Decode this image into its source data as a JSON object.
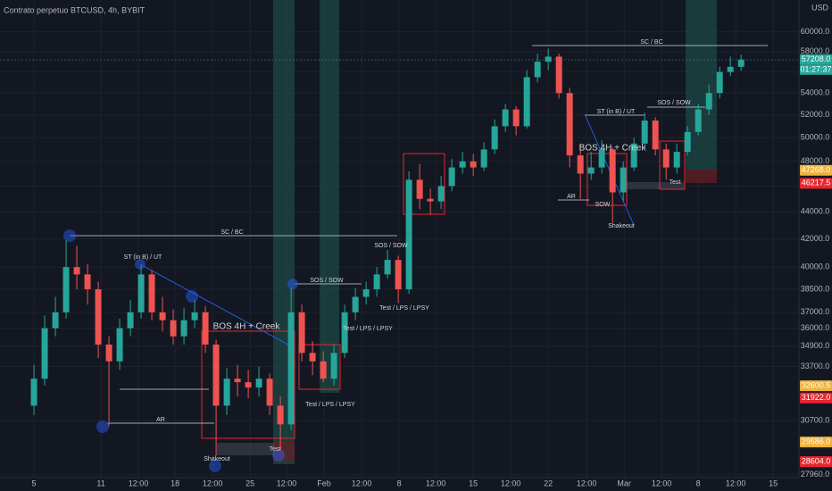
{
  "chart_data": {
    "type": "candlestick",
    "title": "Contrato perpetuo BTCUSD, 4h, BYBIT",
    "currency": "USD",
    "log_scale": true,
    "up_color": "#26a69a",
    "down_color": "#ef5350",
    "xlim": [
      -3.17,
      71.4
    ],
    "ylim": [
      27400,
      63400
    ],
    "xticks": [
      {
        "value": 0,
        "label": "5"
      },
      {
        "value": 6.25,
        "label": "11"
      },
      {
        "value": 9.75,
        "label": "12:00"
      },
      {
        "value": 13.17,
        "label": "18"
      },
      {
        "value": 16.67,
        "label": "12:00"
      },
      {
        "value": 20.17,
        "label": "25"
      },
      {
        "value": 23.58,
        "label": "12:00"
      },
      {
        "value": 27.08,
        "label": "Feb"
      },
      {
        "value": 30.58,
        "label": "12:00"
      },
      {
        "value": 34.08,
        "label": "8"
      },
      {
        "value": 37.5,
        "label": "12:00"
      },
      {
        "value": 41,
        "label": "15"
      },
      {
        "value": 44.5,
        "label": "12:00"
      },
      {
        "value": 48,
        "label": "22"
      },
      {
        "value": 51.58,
        "label": "12:00"
      },
      {
        "value": 55.08,
        "label": "Mar"
      },
      {
        "value": 58.58,
        "label": "12:00"
      },
      {
        "value": 62,
        "label": "8"
      },
      {
        "value": 65.5,
        "label": "12:00"
      },
      {
        "value": 69,
        "label": "15"
      }
    ],
    "yticks": [
      {
        "value": 60000,
        "label": "60000.0"
      },
      {
        "value": 58000,
        "label": "58000.0"
      },
      {
        "value": 56000,
        "label": "56000.0"
      },
      {
        "value": 54000,
        "label": "54000.0"
      },
      {
        "value": 52000,
        "label": "52000.0"
      },
      {
        "value": 50000,
        "label": "50000.0"
      },
      {
        "value": 48000,
        "label": "48000.0"
      },
      {
        "value": 46000,
        "label": "46000.0"
      },
      {
        "value": 44000,
        "label": "44000.0"
      },
      {
        "value": 42000,
        "label": "42000.0"
      },
      {
        "value": 40000,
        "label": "40000.0"
      },
      {
        "value": 38500,
        "label": "38500.0"
      },
      {
        "value": 37000,
        "label": "37000.0"
      },
      {
        "value": 36000,
        "label": "36000.0"
      },
      {
        "value": 34900,
        "label": "34900.0"
      },
      {
        "value": 33700,
        "label": "33700.0"
      },
      {
        "value": 30700,
        "label": "30700.0"
      },
      {
        "value": 27960,
        "label": "27960.0"
      }
    ],
    "x": [
      0,
      1,
      2,
      3,
      4,
      5,
      6,
      7,
      8,
      9,
      10,
      11,
      12,
      13,
      14,
      15,
      16,
      17,
      18,
      19,
      20,
      21,
      22,
      23,
      24,
      25,
      26,
      27,
      28,
      29,
      30,
      31,
      32,
      33,
      34,
      35,
      36,
      37,
      38,
      39,
      40,
      41,
      42,
      43,
      44,
      45,
      46,
      47,
      48,
      49,
      50,
      51,
      52,
      53,
      54,
      55,
      56,
      57,
      58,
      59,
      60,
      61,
      62,
      63,
      64,
      65,
      66
    ],
    "open": [
      31500,
      33000,
      36000,
      37000,
      40000,
      39500,
      38500,
      35000,
      34000,
      36000,
      37000,
      39500,
      37000,
      36500,
      35500,
      36500,
      37000,
      35000,
      31500,
      33000,
      32800,
      32500,
      33000,
      31500,
      30500,
      37000,
      34500,
      34000,
      33000,
      34500,
      37000,
      38000,
      38500,
      39500,
      40500,
      38500,
      46500,
      45000,
      44800,
      46000,
      47500,
      48000,
      47500,
      49000,
      51000,
      52500,
      51000,
      55500,
      57000,
      57500,
      54000,
      48500,
      47000,
      47500,
      49000,
      45500,
      47500,
      49500,
      51500,
      49000,
      47500,
      48800,
      50500,
      52500,
      54000,
      56000,
      56500
    ],
    "high": [
      33800,
      36800,
      38000,
      41900,
      41500,
      40200,
      39000,
      35500,
      36600,
      37800,
      40100,
      39800,
      38000,
      37200,
      37300,
      37800,
      37400,
      35300,
      33600,
      33800,
      33500,
      33700,
      33300,
      32000,
      38600,
      37500,
      35200,
      34600,
      35000,
      37500,
      38600,
      39000,
      40000,
      41200,
      40800,
      47200,
      47800,
      45800,
      46800,
      48200,
      48800,
      48600,
      49600,
      51600,
      53000,
      52800,
      56200,
      57800,
      58300,
      57800,
      54500,
      49500,
      48800,
      49800,
      49200,
      48000,
      50000,
      52200,
      51800,
      49500,
      49500,
      51000,
      53000,
      54800,
      56500,
      57500,
      57700
    ],
    "low": [
      31000,
      32600,
      35500,
      36600,
      38500,
      37500,
      34200,
      30400,
      33500,
      35500,
      36600,
      36500,
      35800,
      35000,
      35000,
      36000,
      34500,
      28900,
      31000,
      32000,
      31900,
      32000,
      31000,
      29200,
      30200,
      34000,
      33200,
      32800,
      32600,
      34200,
      36500,
      37500,
      38000,
      39200,
      37600,
      38200,
      44200,
      43800,
      44200,
      45600,
      47000,
      46800,
      47200,
      48600,
      50500,
      50200,
      50800,
      55000,
      56200,
      53500,
      47500,
      45000,
      46500,
      47000,
      43200,
      44800,
      47200,
      49000,
      48500,
      46500,
      47000,
      48500,
      50200,
      52000,
      53500,
      55600,
      56100
    ],
    "close": [
      33000,
      36000,
      37000,
      40000,
      39500,
      38500,
      35000,
      34000,
      36000,
      37000,
      39500,
      37000,
      36500,
      35500,
      36500,
      37000,
      35000,
      31500,
      33000,
      32800,
      32500,
      33000,
      31500,
      30500,
      37000,
      34500,
      34000,
      33000,
      34500,
      37000,
      38000,
      38500,
      39500,
      40500,
      38500,
      46500,
      45000,
      44800,
      46000,
      47500,
      48000,
      47500,
      49000,
      51000,
      52500,
      51000,
      55500,
      57000,
      57500,
      54000,
      48500,
      47000,
      47500,
      49000,
      45500,
      47500,
      49500,
      51500,
      49000,
      47500,
      48800,
      50500,
      52500,
      54000,
      56000,
      56500,
      57208
    ],
    "price_labels": [
      {
        "value": 57208,
        "label": "57208.0",
        "color": "#26a69a"
      },
      {
        "value": 47268,
        "label": "47268.0",
        "color": "#f0b33a"
      },
      {
        "value": 46217.5,
        "label": "46217.5",
        "color": "#e8262e"
      },
      {
        "value": 32600.5,
        "label": "32600.5",
        "color": "#f0b33a"
      },
      {
        "value": 31922,
        "label": "31922.0",
        "color": "#e8262e"
      },
      {
        "value": 29586,
        "label": "29586.0",
        "color": "#f0b33a"
      },
      {
        "value": 28604,
        "label": "28604.0",
        "color": "#e8262e"
      }
    ],
    "countdown": "01:27:37",
    "annotations": [
      "SC / BC",
      "ST (in B) / UT",
      "AR",
      "BOS 4H + Creek",
      "Shakeout",
      "Test",
      "SOS / SOW",
      "Test / LPS / LPSY",
      "Test / LPS / LPSY",
      "SOS / SOW",
      "Test / LPS / LPSY",
      "SC / BC",
      "ST (in B) / UT",
      "BOS 4H + Creek",
      "SOS / SOW",
      "AR",
      "SOW",
      "Test",
      "Shakeout"
    ]
  }
}
